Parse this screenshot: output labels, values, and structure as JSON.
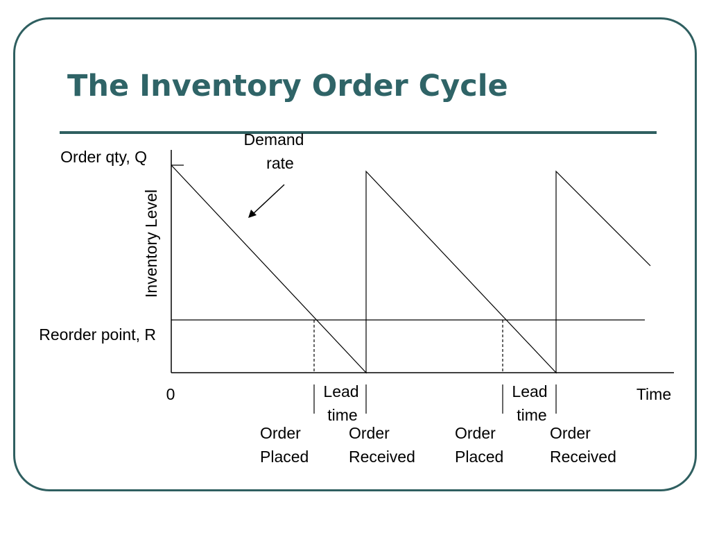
{
  "slide": {
    "title": "The Inventory Order Cycle",
    "accent_color": "#2f5f60"
  },
  "diagram": {
    "y_axis_label": "Inventory Level",
    "x_axis_label": "Time",
    "origin_label": "0",
    "order_qty_label": "Order qty, Q",
    "reorder_point_label": "Reorder point, R",
    "demand_rate": {
      "line1": "Demand",
      "line2": "rate"
    },
    "lead_times": [
      {
        "line1": "Lead",
        "line2": "time"
      },
      {
        "line1": "Lead",
        "line2": "time"
      }
    ],
    "events": [
      {
        "line1": "Order",
        "line2": "Placed"
      },
      {
        "line1": "Order",
        "line2": "Received"
      },
      {
        "line1": "Order",
        "line2": "Placed"
      },
      {
        "line1": "Order",
        "line2": "Received"
      }
    ]
  }
}
